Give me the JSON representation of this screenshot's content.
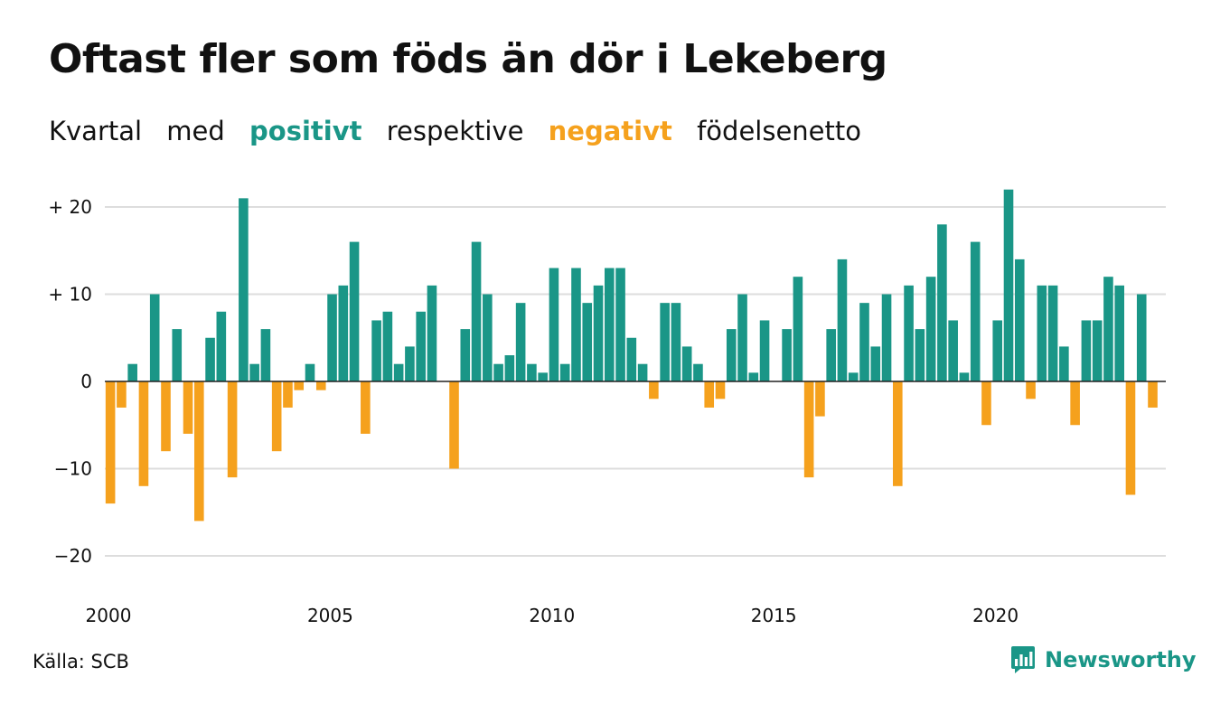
{
  "title": "Oftast fler som föds än dör i Lekeberg",
  "subtitle": {
    "w1": "Kvartal",
    "w2": "med",
    "positive": "positivt",
    "w3": "respektive",
    "negative": "negativt",
    "w4": "födelsenetto"
  },
  "source": "Källa: SCB",
  "brand": {
    "name": "Newsworthy",
    "icon": "newsworthy-logo-icon"
  },
  "colors": {
    "positive": "#1a9687",
    "negative": "#f5a11d",
    "text": "#111111",
    "grid": "#dddddd"
  },
  "chart_data": {
    "type": "bar",
    "title": "Oftast fler som föds än dör i Lekeberg",
    "xlabel": "",
    "ylabel": "",
    "x_start_year": 2000,
    "periods_per_year": 4,
    "ylim": [
      -22,
      22
    ],
    "yticks": [
      {
        "value": 20,
        "label": "+ 20"
      },
      {
        "value": 10,
        "label": "+ 10"
      },
      {
        "value": 0,
        "label": "0"
      },
      {
        "value": -10,
        "label": "−10"
      },
      {
        "value": -20,
        "label": "−20"
      }
    ],
    "xticks": [
      {
        "value": 2000,
        "label": "2000"
      },
      {
        "value": 2005,
        "label": "2005"
      },
      {
        "value": 2010,
        "label": "2010"
      },
      {
        "value": 2015,
        "label": "2015"
      },
      {
        "value": 2020,
        "label": "2020"
      }
    ],
    "grid": true,
    "legend": "none",
    "values": [
      -14,
      -3,
      2,
      -12,
      10,
      -8,
      6,
      -6,
      -16,
      5,
      8,
      -11,
      21,
      2,
      6,
      -8,
      -3,
      -1,
      2,
      -1,
      10,
      11,
      16,
      -6,
      7,
      8,
      2,
      4,
      8,
      11,
      0,
      -10,
      6,
      16,
      10,
      2,
      3,
      9,
      2,
      1,
      13,
      2,
      13,
      9,
      11,
      13,
      13,
      5,
      2,
      -2,
      9,
      9,
      4,
      2,
      -3,
      -2,
      6,
      10,
      1,
      7,
      0,
      6,
      12,
      -11,
      -4,
      6,
      14,
      1,
      9,
      4,
      10,
      -12,
      11,
      6,
      12,
      18,
      7,
      1,
      16,
      -5,
      7,
      22,
      14,
      -2,
      11,
      11,
      4,
      -5,
      7,
      7,
      12,
      11,
      -13,
      10,
      -3
    ]
  }
}
